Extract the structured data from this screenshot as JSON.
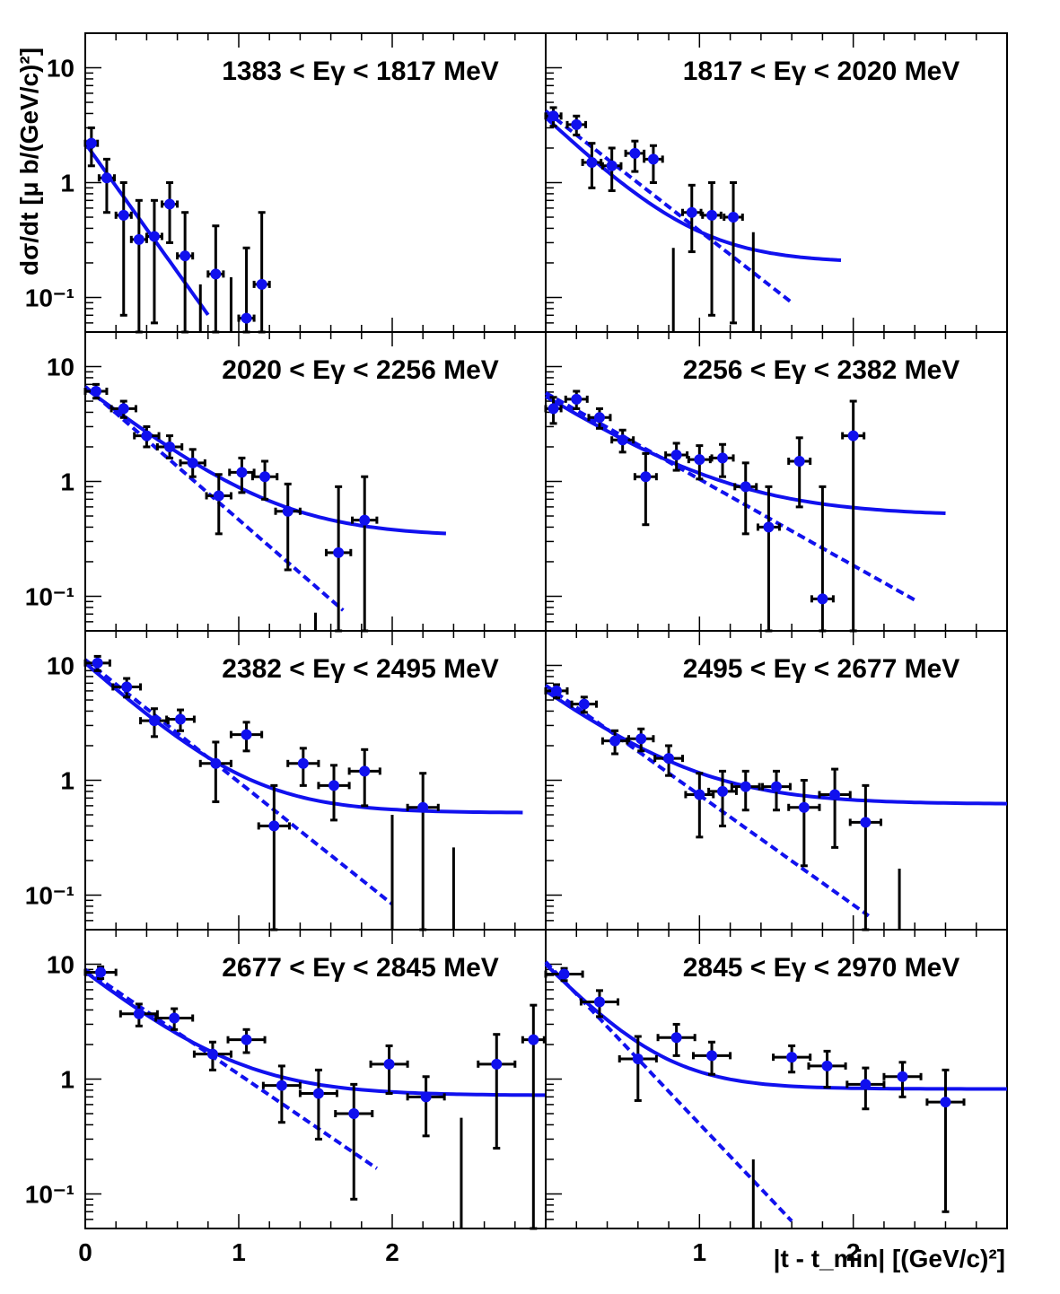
{
  "figure": {
    "ylabel": "dσ/dt [μ b/(GeV/c)²]",
    "xlabel": "|t - t_min| [(GeV/c)²]"
  },
  "axes": {
    "x_range": [
      0,
      3.0
    ],
    "x_ticks": [
      "0",
      "1",
      "2"
    ],
    "y_scale": "log",
    "y_range": [
      0.05,
      20
    ],
    "y_ticks": [
      "10",
      "1",
      "10⁻¹"
    ]
  },
  "colors": {
    "data": "#1010ee",
    "errorbar": "#000000",
    "fit": "#1111ee",
    "frame": "#000000"
  },
  "chart_data": [
    {
      "type": "scatter",
      "title": "1383 < Eγ < 1817 MeV",
      "points": [
        {
          "x": 0.04,
          "y": 2.2,
          "xerr": 0.04,
          "ylo": 1.4,
          "yhi": 3.0
        },
        {
          "x": 0.14,
          "y": 1.1,
          "xerr": 0.05,
          "ylo": 0.55,
          "yhi": 1.6
        },
        {
          "x": 0.25,
          "y": 0.52,
          "xerr": 0.05,
          "ylo": 0.07,
          "yhi": 1.0
        },
        {
          "x": 0.35,
          "y": 0.32,
          "xerr": 0.05,
          "ylo": 0.05,
          "yhi": 0.7
        },
        {
          "x": 0.45,
          "y": 0.34,
          "xerr": 0.05,
          "ylo": 0.06,
          "yhi": 0.7
        },
        {
          "x": 0.55,
          "y": 0.65,
          "xerr": 0.05,
          "ylo": 0.3,
          "yhi": 1.0
        },
        {
          "x": 0.65,
          "y": 0.23,
          "xerr": 0.05,
          "ylo": 0.05,
          "yhi": 0.55
        },
        {
          "x": 0.85,
          "y": 0.16,
          "xerr": 0.05,
          "ylo": 0.05,
          "yhi": 0.42
        },
        {
          "x": 1.05,
          "y": 0.066,
          "xerr": 0.05,
          "ylo": 0.05,
          "yhi": 0.27
        },
        {
          "x": 1.15,
          "y": 0.13,
          "xerr": 0.05,
          "ylo": 0.05,
          "yhi": 0.55
        }
      ],
      "bars": [
        {
          "x": 0.75,
          "yhi": 0.13
        },
        {
          "x": 0.95,
          "yhi": 0.15
        }
      ],
      "fit_solid": {
        "a": 2.2,
        "b": 4.3,
        "c": 0.0,
        "xmax": 0.8
      },
      "fit_dashed": null
    },
    {
      "type": "scatter",
      "title": "1817 < Eγ < 2020 MeV",
      "points": [
        {
          "x": 0.05,
          "y": 3.8,
          "xerr": 0.05,
          "ylo": 3.1,
          "yhi": 4.5
        },
        {
          "x": 0.2,
          "y": 3.2,
          "xerr": 0.06,
          "ylo": 2.6,
          "yhi": 3.8
        },
        {
          "x": 0.3,
          "y": 1.5,
          "xerr": 0.06,
          "ylo": 0.9,
          "yhi": 2.2
        },
        {
          "x": 0.43,
          "y": 1.4,
          "xerr": 0.06,
          "ylo": 0.85,
          "yhi": 2.0
        },
        {
          "x": 0.58,
          "y": 1.8,
          "xerr": 0.06,
          "ylo": 1.25,
          "yhi": 2.3
        },
        {
          "x": 0.7,
          "y": 1.6,
          "xerr": 0.06,
          "ylo": 1.0,
          "yhi": 2.1
        },
        {
          "x": 0.95,
          "y": 0.55,
          "xerr": 0.06,
          "ylo": 0.25,
          "yhi": 0.95
        },
        {
          "x": 1.08,
          "y": 0.52,
          "xerr": 0.06,
          "ylo": 0.07,
          "yhi": 1.0
        },
        {
          "x": 1.22,
          "y": 0.5,
          "xerr": 0.06,
          "ylo": 0.06,
          "yhi": 1.0
        }
      ],
      "bars": [
        {
          "x": 0.83,
          "yhi": 0.27
        },
        {
          "x": 1.35,
          "yhi": 0.37
        }
      ],
      "fit_solid": {
        "a": 3.7,
        "b": 3.0,
        "c": 0.2,
        "xmax": 1.92
      },
      "fit_dashed": {
        "a": 4.2,
        "b": 2.4,
        "xmax": 1.6
      }
    },
    {
      "type": "scatter",
      "title": "2020 < Eγ < 2256 MeV",
      "points": [
        {
          "x": 0.07,
          "y": 6.1,
          "xerr": 0.07,
          "ylo": 5.3,
          "yhi": 7.0
        },
        {
          "x": 0.25,
          "y": 4.3,
          "xerr": 0.08,
          "ylo": 3.6,
          "yhi": 5.0
        },
        {
          "x": 0.4,
          "y": 2.5,
          "xerr": 0.08,
          "ylo": 2.0,
          "yhi": 3.0
        },
        {
          "x": 0.55,
          "y": 2.0,
          "xerr": 0.08,
          "ylo": 1.6,
          "yhi": 2.5
        },
        {
          "x": 0.7,
          "y": 1.45,
          "xerr": 0.08,
          "ylo": 1.1,
          "yhi": 1.9
        },
        {
          "x": 0.87,
          "y": 0.75,
          "xerr": 0.08,
          "ylo": 0.35,
          "yhi": 1.15
        },
        {
          "x": 1.02,
          "y": 1.2,
          "xerr": 0.08,
          "ylo": 0.8,
          "yhi": 1.6
        },
        {
          "x": 1.17,
          "y": 1.1,
          "xerr": 0.08,
          "ylo": 0.7,
          "yhi": 1.5
        },
        {
          "x": 1.32,
          "y": 0.55,
          "xerr": 0.08,
          "ylo": 0.17,
          "yhi": 0.95
        },
        {
          "x": 1.65,
          "y": 0.24,
          "xerr": 0.08,
          "ylo": 0.05,
          "yhi": 0.9
        },
        {
          "x": 1.82,
          "y": 0.46,
          "xerr": 0.08,
          "ylo": 0.05,
          "yhi": 1.1
        }
      ],
      "bars": [
        {
          "x": 1.5,
          "yhi": 0.072
        }
      ],
      "fit_solid": {
        "a": 6.5,
        "b": 2.4,
        "c": 0.33,
        "xmax": 2.35
      },
      "fit_dashed": {
        "a": 6.7,
        "b": 2.67,
        "xmax": 1.68
      }
    },
    {
      "type": "scatter",
      "title": "2256 < Eγ < 2382 MeV",
      "points": [
        {
          "x": 0.05,
          "y": 4.3,
          "xerr": 0.05,
          "ylo": 3.2,
          "yhi": 5.4
        },
        {
          "x": 0.2,
          "y": 5.2,
          "xerr": 0.07,
          "ylo": 4.3,
          "yhi": 6.1
        },
        {
          "x": 0.35,
          "y": 3.6,
          "xerr": 0.07,
          "ylo": 2.9,
          "yhi": 4.3
        },
        {
          "x": 0.5,
          "y": 2.3,
          "xerr": 0.07,
          "ylo": 1.8,
          "yhi": 2.8
        },
        {
          "x": 0.65,
          "y": 1.1,
          "xerr": 0.07,
          "ylo": 0.42,
          "yhi": 1.75
        },
        {
          "x": 0.85,
          "y": 1.7,
          "xerr": 0.07,
          "ylo": 1.25,
          "yhi": 2.15
        },
        {
          "x": 1.0,
          "y": 1.55,
          "xerr": 0.07,
          "ylo": 1.05,
          "yhi": 2.05
        },
        {
          "x": 1.15,
          "y": 1.6,
          "xerr": 0.07,
          "ylo": 1.1,
          "yhi": 2.1
        },
        {
          "x": 1.3,
          "y": 0.9,
          "xerr": 0.07,
          "ylo": 0.35,
          "yhi": 1.45
        },
        {
          "x": 1.45,
          "y": 0.4,
          "xerr": 0.07,
          "ylo": 0.05,
          "yhi": 0.9
        },
        {
          "x": 1.65,
          "y": 1.5,
          "xerr": 0.07,
          "ylo": 0.6,
          "yhi": 2.4
        },
        {
          "x": 1.8,
          "y": 0.095,
          "xerr": 0.07,
          "ylo": 0.05,
          "yhi": 0.9
        },
        {
          "x": 2.0,
          "y": 2.5,
          "xerr": 0.07,
          "ylo": 0.05,
          "yhi": 5.0
        }
      ],
      "bars": [],
      "fit_solid": {
        "a": 5.5,
        "b": 2.0,
        "c": 0.5,
        "xmax": 2.6
      },
      "fit_dashed": {
        "a": 5.9,
        "b": 1.73,
        "xmax": 2.4
      }
    },
    {
      "type": "scatter",
      "title": "2382 < Eγ < 2495 MeV",
      "points": [
        {
          "x": 0.08,
          "y": 10.5,
          "xerr": 0.08,
          "ylo": 9.0,
          "yhi": 12.0
        },
        {
          "x": 0.27,
          "y": 6.5,
          "xerr": 0.09,
          "ylo": 5.3,
          "yhi": 7.7
        },
        {
          "x": 0.45,
          "y": 3.3,
          "xerr": 0.09,
          "ylo": 2.4,
          "yhi": 4.2
        },
        {
          "x": 0.62,
          "y": 3.4,
          "xerr": 0.09,
          "ylo": 2.7,
          "yhi": 4.1
        },
        {
          "x": 0.85,
          "y": 1.4,
          "xerr": 0.1,
          "ylo": 0.65,
          "yhi": 2.15
        },
        {
          "x": 1.05,
          "y": 2.5,
          "xerr": 0.1,
          "ylo": 1.8,
          "yhi": 3.2
        },
        {
          "x": 1.23,
          "y": 0.4,
          "xerr": 0.1,
          "ylo": 0.05,
          "yhi": 0.9
        },
        {
          "x": 1.42,
          "y": 1.4,
          "xerr": 0.1,
          "ylo": 0.9,
          "yhi": 1.9
        },
        {
          "x": 1.62,
          "y": 0.9,
          "xerr": 0.1,
          "ylo": 0.45,
          "yhi": 1.35
        },
        {
          "x": 1.82,
          "y": 1.2,
          "xerr": 0.1,
          "ylo": 0.6,
          "yhi": 1.85
        },
        {
          "x": 2.2,
          "y": 0.58,
          "xerr": 0.1,
          "ylo": 0.05,
          "yhi": 1.15
        }
      ],
      "bars": [
        {
          "x": 2.0,
          "yhi": 0.5
        },
        {
          "x": 2.4,
          "yhi": 0.26
        }
      ],
      "fit_solid": {
        "a": 10.5,
        "b": 2.8,
        "c": 0.52,
        "xmax": 2.85
      },
      "fit_dashed": {
        "a": 11.2,
        "b": 2.45,
        "xmax": 2.0
      }
    },
    {
      "type": "scatter",
      "title": "2495 < Eγ < 2677 MeV",
      "points": [
        {
          "x": 0.07,
          "y": 6.0,
          "xerr": 0.07,
          "ylo": 5.2,
          "yhi": 6.8
        },
        {
          "x": 0.25,
          "y": 4.6,
          "xerr": 0.08,
          "ylo": 3.9,
          "yhi": 5.3
        },
        {
          "x": 0.45,
          "y": 2.2,
          "xerr": 0.08,
          "ylo": 1.7,
          "yhi": 2.7
        },
        {
          "x": 0.62,
          "y": 2.3,
          "xerr": 0.08,
          "ylo": 1.8,
          "yhi": 2.8
        },
        {
          "x": 0.8,
          "y": 1.55,
          "xerr": 0.09,
          "ylo": 1.1,
          "yhi": 2.0
        },
        {
          "x": 1.0,
          "y": 0.75,
          "xerr": 0.09,
          "ylo": 0.32,
          "yhi": 1.15
        },
        {
          "x": 1.15,
          "y": 0.8,
          "xerr": 0.09,
          "ylo": 0.4,
          "yhi": 1.2
        },
        {
          "x": 1.3,
          "y": 0.88,
          "xerr": 0.09,
          "ylo": 0.55,
          "yhi": 1.2
        },
        {
          "x": 1.5,
          "y": 0.88,
          "xerr": 0.09,
          "ylo": 0.55,
          "yhi": 1.2
        },
        {
          "x": 1.68,
          "y": 0.58,
          "xerr": 0.1,
          "ylo": 0.18,
          "yhi": 1.0
        },
        {
          "x": 1.88,
          "y": 0.75,
          "xerr": 0.1,
          "ylo": 0.26,
          "yhi": 1.25
        },
        {
          "x": 2.08,
          "y": 0.43,
          "xerr": 0.1,
          "ylo": 0.05,
          "yhi": 0.9
        }
      ],
      "bars": [
        {
          "x": 2.3,
          "yhi": 0.17
        }
      ],
      "fit_solid": {
        "a": 6.0,
        "b": 2.3,
        "c": 0.62,
        "xmax": 3.0
      },
      "fit_dashed": {
        "a": 6.7,
        "b": 2.2,
        "xmax": 2.1
      }
    },
    {
      "type": "scatter",
      "title": "2677 < Eγ < 2845 MeV",
      "points": [
        {
          "x": 0.1,
          "y": 8.5,
          "xerr": 0.1,
          "ylo": 7.5,
          "yhi": 9.5
        },
        {
          "x": 0.35,
          "y": 3.7,
          "xerr": 0.12,
          "ylo": 2.9,
          "yhi": 4.5
        },
        {
          "x": 0.58,
          "y": 3.4,
          "xerr": 0.12,
          "ylo": 2.7,
          "yhi": 4.1
        },
        {
          "x": 0.83,
          "y": 1.65,
          "xerr": 0.12,
          "ylo": 1.2,
          "yhi": 2.1
        },
        {
          "x": 1.05,
          "y": 2.2,
          "xerr": 0.12,
          "ylo": 1.7,
          "yhi": 2.7
        },
        {
          "x": 1.28,
          "y": 0.88,
          "xerr": 0.12,
          "ylo": 0.42,
          "yhi": 1.3
        },
        {
          "x": 1.52,
          "y": 0.75,
          "xerr": 0.12,
          "ylo": 0.3,
          "yhi": 1.2
        },
        {
          "x": 1.75,
          "y": 0.5,
          "xerr": 0.12,
          "ylo": 0.09,
          "yhi": 0.9
        },
        {
          "x": 1.98,
          "y": 1.35,
          "xerr": 0.12,
          "ylo": 0.75,
          "yhi": 1.95
        },
        {
          "x": 2.22,
          "y": 0.7,
          "xerr": 0.12,
          "ylo": 0.32,
          "yhi": 1.05
        },
        {
          "x": 2.68,
          "y": 1.35,
          "xerr": 0.12,
          "ylo": 0.25,
          "yhi": 2.45
        },
        {
          "x": 2.92,
          "y": 2.2,
          "xerr": 0.07,
          "ylo": 0.05,
          "yhi": 4.4
        }
      ],
      "bars": [
        {
          "x": 2.45,
          "yhi": 0.46
        }
      ],
      "fit_solid": {
        "a": 8.6,
        "b": 2.5,
        "c": 0.72,
        "xmax": 3.0
      },
      "fit_dashed": {
        "a": 9.0,
        "b": 2.1,
        "xmax": 1.9
      }
    },
    {
      "type": "scatter",
      "title": "2845 < Eγ < 2970 MeV",
      "points": [
        {
          "x": 0.12,
          "y": 8.2,
          "xerr": 0.12,
          "ylo": 7.2,
          "yhi": 9.2
        },
        {
          "x": 0.35,
          "y": 4.7,
          "xerr": 0.12,
          "ylo": 3.5,
          "yhi": 5.9
        },
        {
          "x": 0.6,
          "y": 1.5,
          "xerr": 0.12,
          "ylo": 0.65,
          "yhi": 2.35
        },
        {
          "x": 0.85,
          "y": 2.3,
          "xerr": 0.12,
          "ylo": 1.6,
          "yhi": 3.0
        },
        {
          "x": 1.08,
          "y": 1.6,
          "xerr": 0.12,
          "ylo": 1.1,
          "yhi": 2.1
        },
        {
          "x": 1.6,
          "y": 1.55,
          "xerr": 0.12,
          "ylo": 1.15,
          "yhi": 1.95
        },
        {
          "x": 1.83,
          "y": 1.3,
          "xerr": 0.12,
          "ylo": 0.85,
          "yhi": 1.75
        },
        {
          "x": 2.08,
          "y": 0.9,
          "xerr": 0.12,
          "ylo": 0.55,
          "yhi": 1.25
        },
        {
          "x": 2.32,
          "y": 1.05,
          "xerr": 0.12,
          "ylo": 0.7,
          "yhi": 1.4
        },
        {
          "x": 2.6,
          "y": 0.63,
          "xerr": 0.12,
          "ylo": 0.07,
          "yhi": 1.2
        }
      ],
      "bars": [
        {
          "x": 1.35,
          "yhi": 0.2
        }
      ],
      "fit_solid": {
        "a": 10.0,
        "b": 3.3,
        "c": 0.82,
        "xmax": 3.0
      },
      "fit_dashed": {
        "a": 10.5,
        "b": 3.25,
        "xmax": 1.6
      }
    }
  ]
}
